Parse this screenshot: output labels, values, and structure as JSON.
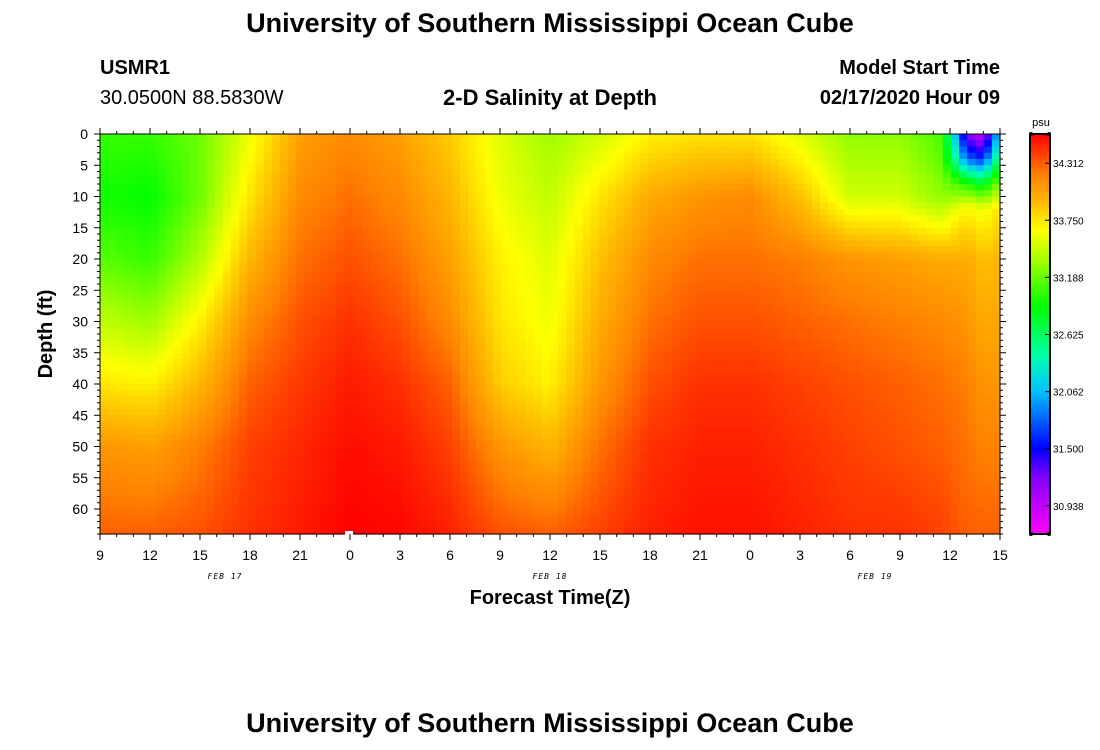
{
  "page": {
    "title": "University of Southern Mississippi Ocean Cube",
    "footer_title": "University of Southern Mississippi Ocean Cube",
    "station_id": "USMR1",
    "station_coords": "30.0500N 88.5830W",
    "plot_title": "2-D Salinity at Depth",
    "model_start_label": "Model Start Time",
    "model_start_value": "02/17/2020 Hour 09"
  },
  "chart_data": {
    "type": "heatmap",
    "title": "2-D Salinity at Depth",
    "xlabel": "Forecast Time(Z)",
    "ylabel": "Depth (ft)",
    "x_tick_labels": [
      "9",
      "12",
      "15",
      "18",
      "21",
      "0",
      "3",
      "6",
      "9",
      "12",
      "15",
      "18",
      "21",
      "0",
      "3",
      "6",
      "9",
      "12",
      "15"
    ],
    "x_hours_from_start": [
      0,
      3,
      6,
      9,
      12,
      15,
      18,
      21,
      24,
      27,
      30,
      33,
      36,
      39,
      42,
      45,
      48,
      51,
      54
    ],
    "x_range_hours": [
      0,
      54
    ],
    "date_labels": [
      {
        "text": "FEB 17",
        "hour": 7.5
      },
      {
        "text": "FEB 18",
        "hour": 27
      },
      {
        "text": "FEB 19",
        "hour": 46.5
      }
    ],
    "y_ticks": [
      0,
      5,
      10,
      15,
      20,
      25,
      30,
      35,
      40,
      45,
      50,
      55,
      60
    ],
    "y_range": [
      0,
      64
    ],
    "colorbar": {
      "unit": "psu",
      "ticks": [
        34.312,
        33.75,
        33.188,
        32.625,
        32.062,
        31.5,
        30.938
      ],
      "range": [
        30.66,
        34.6
      ],
      "colors": [
        {
          "v": 30.66,
          "c": "#ff00ff"
        },
        {
          "v": 31.22,
          "c": "#8000ff"
        },
        {
          "v": 31.5,
          "c": "#0000ff"
        },
        {
          "v": 32.062,
          "c": "#00c0ff"
        },
        {
          "v": 32.4,
          "c": "#00ffb0"
        },
        {
          "v": 32.9,
          "c": "#00ff00"
        },
        {
          "v": 33.35,
          "c": "#a0ff00"
        },
        {
          "v": 33.65,
          "c": "#ffff00"
        },
        {
          "v": 33.9,
          "c": "#ffc000"
        },
        {
          "v": 34.2,
          "c": "#ff8000"
        },
        {
          "v": 34.6,
          "c": "#ff0000"
        }
      ]
    },
    "salinity_profiles": [
      {
        "hour": 0,
        "depth_ft": [
          0,
          10,
          20,
          30,
          40,
          50,
          64
        ],
        "psu": [
          33.05,
          32.95,
          33.15,
          33.45,
          33.75,
          34.1,
          34.3
        ]
      },
      {
        "hour": 3,
        "depth_ft": [
          0,
          10,
          20,
          30,
          40,
          50,
          64
        ],
        "psu": [
          33.05,
          32.9,
          33.05,
          33.35,
          33.7,
          34.05,
          34.3
        ]
      },
      {
        "hour": 6,
        "depth_ft": [
          0,
          10,
          20,
          30,
          40,
          50,
          64
        ],
        "psu": [
          33.2,
          33.2,
          33.4,
          33.7,
          33.95,
          34.2,
          34.35
        ]
      },
      {
        "hour": 9,
        "depth_ft": [
          0,
          10,
          20,
          30,
          40,
          50,
          64
        ],
        "psu": [
          33.6,
          33.75,
          33.95,
          34.15,
          34.3,
          34.4,
          34.45
        ]
      },
      {
        "hour": 12,
        "depth_ft": [
          0,
          10,
          20,
          30,
          40,
          50,
          64
        ],
        "psu": [
          34.05,
          34.15,
          34.25,
          34.35,
          34.42,
          34.48,
          34.52
        ]
      },
      {
        "hour": 15,
        "depth_ft": [
          0,
          10,
          20,
          30,
          40,
          50,
          64
        ],
        "psu": [
          34.15,
          34.25,
          34.35,
          34.45,
          34.52,
          34.56,
          34.6
        ]
      },
      {
        "hour": 18,
        "depth_ft": [
          0,
          10,
          20,
          30,
          40,
          50,
          64
        ],
        "psu": [
          34.05,
          34.15,
          34.25,
          34.35,
          34.45,
          34.52,
          34.58
        ]
      },
      {
        "hour": 21,
        "depth_ft": [
          0,
          10,
          20,
          30,
          40,
          50,
          64
        ],
        "psu": [
          33.85,
          33.95,
          34.05,
          34.15,
          34.3,
          34.4,
          34.5
        ]
      },
      {
        "hour": 24,
        "depth_ft": [
          0,
          10,
          20,
          30,
          40,
          50,
          64
        ],
        "psu": [
          33.55,
          33.6,
          33.7,
          33.75,
          33.85,
          34.1,
          34.35
        ]
      },
      {
        "hour": 27,
        "depth_ft": [
          0,
          10,
          20,
          30,
          40,
          50,
          64
        ],
        "psu": [
          33.35,
          33.45,
          33.55,
          33.6,
          33.7,
          33.95,
          34.3
        ]
      },
      {
        "hour": 30,
        "depth_ft": [
          0,
          10,
          20,
          30,
          40,
          50,
          64
        ],
        "psu": [
          33.5,
          33.75,
          33.9,
          34.0,
          34.1,
          34.25,
          34.4
        ]
      },
      {
        "hour": 33,
        "depth_ft": [
          0,
          10,
          20,
          30,
          40,
          50,
          64
        ],
        "psu": [
          33.7,
          34.0,
          34.15,
          34.25,
          34.35,
          34.45,
          34.5
        ]
      },
      {
        "hour": 36,
        "depth_ft": [
          0,
          10,
          20,
          30,
          40,
          50,
          64
        ],
        "psu": [
          33.75,
          34.1,
          34.25,
          34.35,
          34.45,
          34.5,
          34.55
        ]
      },
      {
        "hour": 39,
        "depth_ft": [
          0,
          10,
          20,
          30,
          40,
          50,
          64
        ],
        "psu": [
          33.75,
          34.15,
          34.25,
          34.35,
          34.45,
          34.5,
          34.55
        ]
      },
      {
        "hour": 42,
        "depth_ft": [
          0,
          10,
          20,
          30,
          40,
          50,
          64
        ],
        "psu": [
          33.55,
          33.9,
          34.2,
          34.3,
          34.4,
          34.45,
          34.5
        ]
      },
      {
        "hour": 45,
        "depth_ft": [
          0,
          10,
          20,
          30,
          40,
          50,
          64
        ],
        "psu": [
          33.3,
          33.5,
          34.1,
          34.25,
          34.35,
          34.4,
          34.45
        ]
      },
      {
        "hour": 48,
        "depth_ft": [
          0,
          10,
          20,
          30,
          40,
          50,
          64
        ],
        "psu": [
          33.3,
          33.5,
          34.05,
          34.2,
          34.3,
          34.35,
          34.45
        ]
      },
      {
        "hour": 50.5,
        "depth_ft": [
          0,
          10,
          20,
          30,
          40,
          50,
          64
        ],
        "psu": [
          33.1,
          33.3,
          34.0,
          34.15,
          34.25,
          34.3,
          34.4
        ]
      },
      {
        "hour": 52,
        "depth_ft": [
          0,
          4,
          8,
          12,
          20,
          40,
          64
        ],
        "psu": [
          31.2,
          31.8,
          33.0,
          33.7,
          34.0,
          34.2,
          34.3
        ]
      },
      {
        "hour": 53,
        "depth_ft": [
          0,
          4,
          8,
          12,
          20,
          40,
          64
        ],
        "psu": [
          30.9,
          31.6,
          32.8,
          33.6,
          33.9,
          34.1,
          34.3
        ]
      },
      {
        "hour": 54,
        "depth_ft": [
          0,
          4,
          8,
          12,
          20,
          40,
          64
        ],
        "psu": [
          32.2,
          32.7,
          33.3,
          33.75,
          33.95,
          34.1,
          34.3
        ]
      }
    ]
  }
}
